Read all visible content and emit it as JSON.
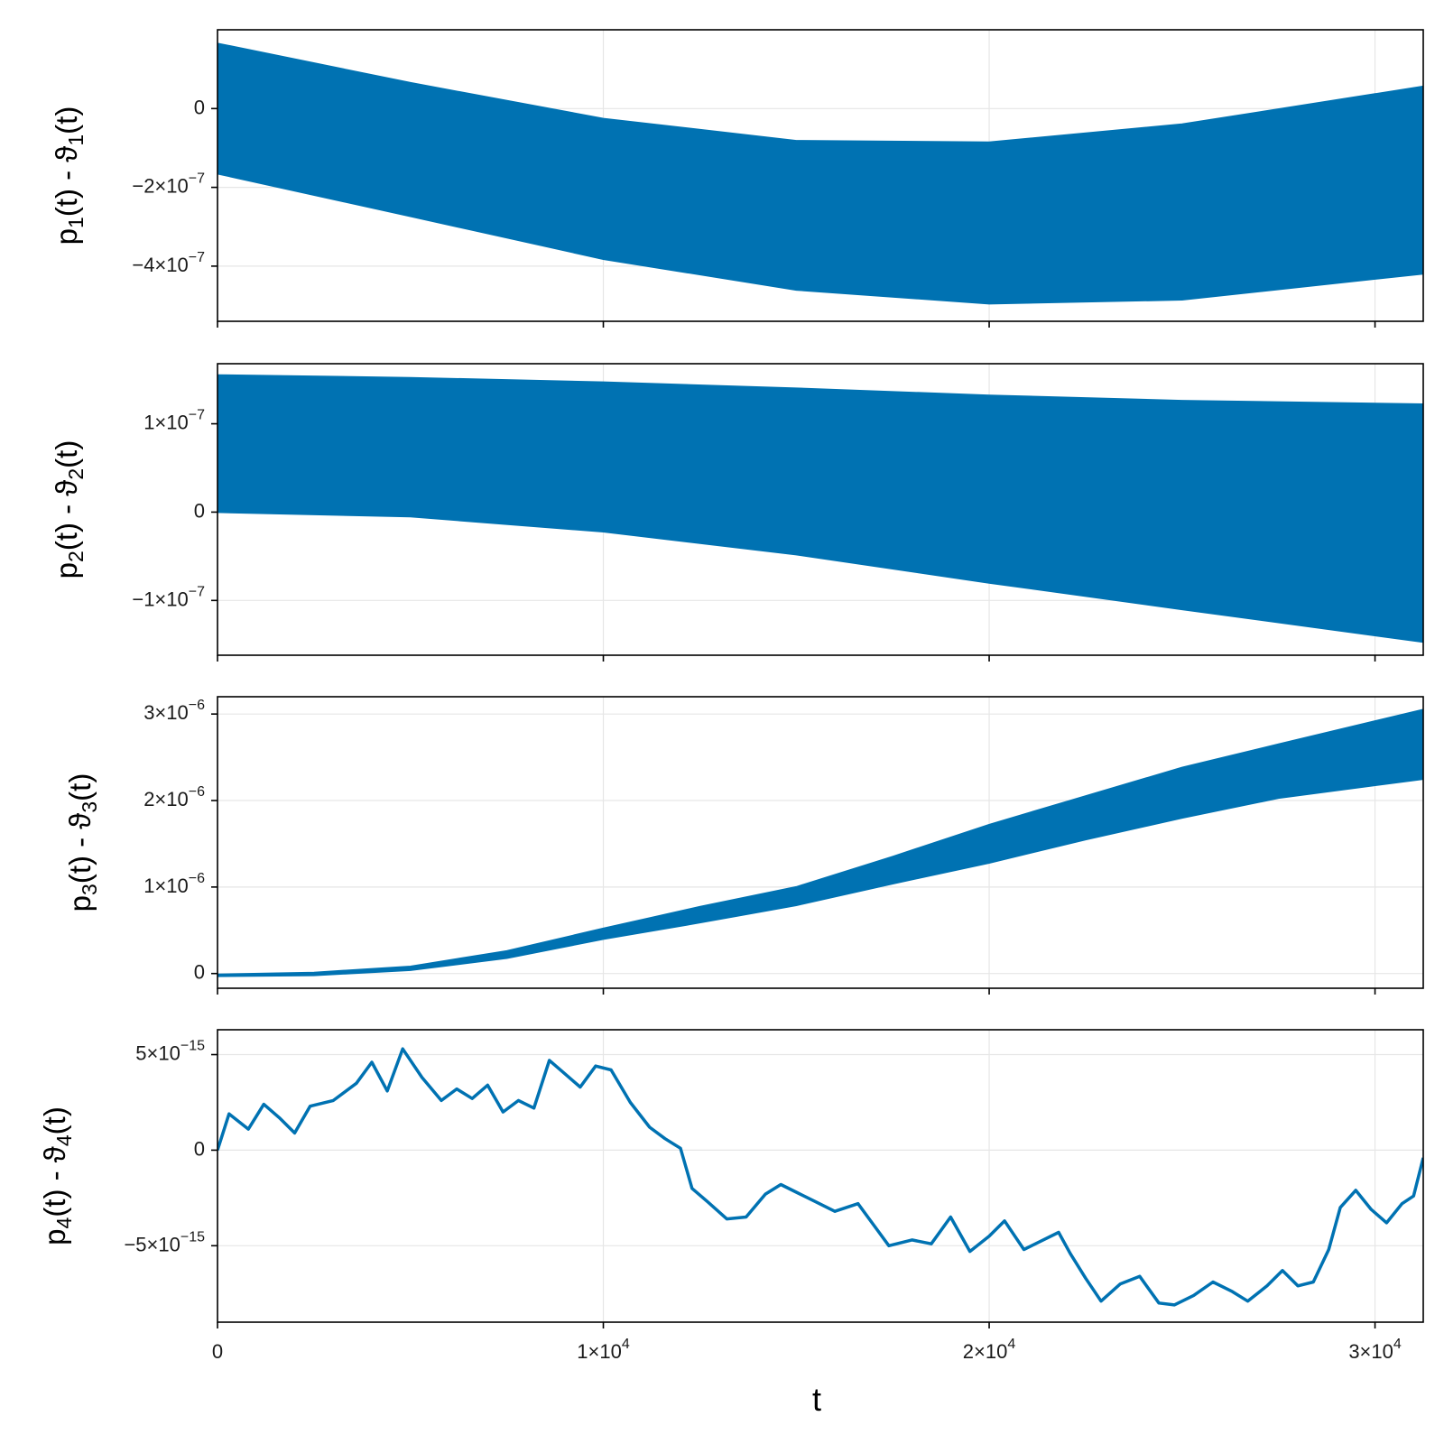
{
  "chart_data": {
    "type": "line",
    "shared_x": {
      "label": "t",
      "xlim": [
        0,
        31250
      ],
      "ticks": [
        0,
        10000,
        20000,
        30000
      ],
      "tick_labels": [
        {
          "mantissa": "0",
          "exp": ""
        },
        {
          "mantissa": "1×10",
          "exp": "4"
        },
        {
          "mantissa": "2×10",
          "exp": "4"
        },
        {
          "mantissa": "3×10",
          "exp": "4"
        }
      ]
    },
    "colors": {
      "series": "#0072b2",
      "grid": "#e6e6e6",
      "frame": "#000000"
    },
    "grid": true,
    "panels": [
      {
        "ylabel": {
          "base": "p",
          "sub": "1",
          "mid": "(t) - ϑ",
          "sub2": "1",
          "tail": "(t)"
        },
        "ylim": [
          -5.4e-07,
          2e-07
        ],
        "yticks": [
          0,
          -2e-07,
          -4e-07
        ],
        "ytick_labels": [
          {
            "mantissa": "0",
            "exp": ""
          },
          {
            "mantissa": "−2×10",
            "exp": "−7"
          },
          {
            "mantissa": "−4×10",
            "exp": "−7"
          }
        ],
        "kind": "band",
        "x": [
          0,
          5000,
          10000,
          15000,
          20000,
          25000,
          31250
        ],
        "upper": [
          1.65e-07,
          6.5e-08,
          -2.6e-08,
          -8.2e-08,
          -8.6e-08,
          -4e-08,
          5.6e-08
        ],
        "lower": [
          -1.65e-07,
          -2.73e-07,
          -3.82e-07,
          -4.6e-07,
          -4.95e-07,
          -4.85e-07,
          -4.19e-07
        ]
      },
      {
        "ylabel": {
          "base": "p",
          "sub": "2",
          "mid": "(t) - ϑ",
          "sub2": "2",
          "tail": "(t)"
        },
        "ylim": [
          -1.62e-07,
          1.68e-07
        ],
        "yticks": [
          1e-07,
          0,
          -1e-07
        ],
        "ytick_labels": [
          {
            "mantissa": "1×10",
            "exp": "−7"
          },
          {
            "mantissa": "0",
            "exp": ""
          },
          {
            "mantissa": "−1×10",
            "exp": "−7"
          }
        ],
        "kind": "band",
        "x": [
          0,
          5000,
          10000,
          15000,
          20000,
          25000,
          31250
        ],
        "upper": [
          1.55e-07,
          1.52e-07,
          1.47e-07,
          1.4e-07,
          1.32e-07,
          1.26e-07,
          1.22e-07
        ],
        "lower": [
          0.0,
          -5e-09,
          -2.2e-08,
          -4.8e-08,
          -8e-08,
          -1.1e-07,
          -1.47e-07
        ]
      },
      {
        "ylabel": {
          "base": "p",
          "sub": "3",
          "mid": "(t) - ϑ",
          "sub2": "3",
          "tail": "(t)"
        },
        "ylim": [
          -1.7e-07,
          3.2e-06
        ],
        "yticks": [
          0,
          1e-06,
          2e-06,
          3e-06
        ],
        "ytick_labels": [
          {
            "mantissa": "0",
            "exp": ""
          },
          {
            "mantissa": "1×10",
            "exp": "−6"
          },
          {
            "mantissa": "2×10",
            "exp": "−6"
          },
          {
            "mantissa": "3×10",
            "exp": "−6"
          }
        ],
        "kind": "band",
        "x": [
          0,
          2500,
          5000,
          7500,
          10000,
          12500,
          15000,
          17500,
          20000,
          22500,
          25000,
          27500,
          31250
        ],
        "upper": [
          -1e-08,
          1e-08,
          8e-08,
          2.6e-07,
          5.2e-07,
          7.7e-07,
          1e-06,
          1.35e-06,
          1.72e-06,
          2.05e-06,
          2.38e-06,
          2.65e-06,
          3.05e-06
        ],
        "lower": [
          -3e-08,
          -2e-08,
          4e-08,
          1.8e-07,
          4e-07,
          5.9e-07,
          7.9e-07,
          1.04e-06,
          1.28e-06,
          1.55e-06,
          1.8e-06,
          2.03e-06,
          2.25e-06
        ]
      },
      {
        "ylabel": {
          "base": "p",
          "sub": "4",
          "mid": "(t) - ϑ",
          "sub2": "4",
          "tail": "(t)"
        },
        "ylim": [
          -9e-15,
          6.3e-15
        ],
        "yticks": [
          5e-15,
          0,
          -5e-15
        ],
        "ytick_labels": [
          {
            "mantissa": "5×10",
            "exp": "−15"
          },
          {
            "mantissa": "0",
            "exp": ""
          },
          {
            "mantissa": "−5×10",
            "exp": "−15"
          }
        ],
        "kind": "line",
        "x": [
          0,
          300,
          800,
          1200,
          1600,
          2000,
          2400,
          3000,
          3600,
          4000,
          4400,
          4800,
          5300,
          5800,
          6200,
          6600,
          7000,
          7400,
          7800,
          8200,
          8600,
          9000,
          9400,
          9800,
          10200,
          10700,
          11200,
          11600,
          12000,
          12300,
          12700,
          13200,
          13700,
          14200,
          14600,
          15000,
          15500,
          16000,
          16600,
          17000,
          17400,
          18000,
          18500,
          19000,
          19500,
          20000,
          20400,
          20900,
          21400,
          21800,
          22100,
          22500,
          22900,
          23400,
          23900,
          24400,
          24800,
          25300,
          25800,
          26300,
          26700,
          27200,
          27600,
          28000,
          28400,
          28800,
          29100,
          29500,
          29900,
          30300,
          30700,
          31000,
          31250
        ],
        "y": [
          0.0,
          1.9e-15,
          1.1e-15,
          2.4e-15,
          1.7e-15,
          9e-16,
          2.3e-15,
          2.6e-15,
          3.5e-15,
          4.6e-15,
          3.1e-15,
          5.3e-15,
          3.8e-15,
          2.6e-15,
          3.2e-15,
          2.7e-15,
          3.4e-15,
          2e-15,
          2.6e-15,
          2.2e-15,
          4.7e-15,
          4e-15,
          3.3e-15,
          4.4e-15,
          4.2e-15,
          2.5e-15,
          1.2e-15,
          6e-16,
          1e-16,
          -2e-15,
          -2.7e-15,
          -3.6e-15,
          -3.5e-15,
          -2.3e-15,
          -1.8e-15,
          -2.2e-15,
          -2.7e-15,
          -3.2e-15,
          -2.8e-15,
          -3.9e-15,
          -5e-15,
          -4.7e-15,
          -4.9e-15,
          -3.5e-15,
          -5.3e-15,
          -4.5e-15,
          -3.7e-15,
          -5.2e-15,
          -4.7e-15,
          -4.3e-15,
          -5.4e-15,
          -6.7e-15,
          -7.9e-15,
          -7e-15,
          -6.6e-15,
          -8e-15,
          -8.1e-15,
          -7.6e-15,
          -6.9e-15,
          -7.4e-15,
          -7.9e-15,
          -7.1e-15,
          -6.3e-15,
          -7.1e-15,
          -6.9e-15,
          -5.2e-15,
          -3e-15,
          -2.1e-15,
          -3.1e-15,
          -3.8e-15,
          -2.8e-15,
          -2.4e-15,
          -4e-16
        ]
      }
    ]
  }
}
